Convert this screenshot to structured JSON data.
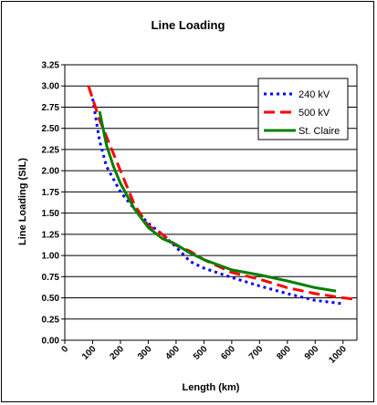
{
  "chart_data": {
    "type": "line",
    "title": "Line Loading",
    "xlabel": "Length (km)",
    "ylabel": "Line Loading (SIL)",
    "xlim": [
      0,
      1050
    ],
    "ylim": [
      0,
      3.25
    ],
    "x_ticks": [
      0,
      100,
      200,
      300,
      400,
      500,
      600,
      700,
      800,
      900,
      1000
    ],
    "x_tick_labels": [
      "0",
      "100",
      "200",
      "300",
      "400",
      "500",
      "600",
      "700",
      "800",
      "900",
      "1000"
    ],
    "y_ticks": [
      0,
      0.25,
      0.5,
      0.75,
      1.0,
      1.25,
      1.5,
      1.75,
      2.0,
      2.25,
      2.5,
      2.75,
      3.0,
      3.25
    ],
    "y_tick_labels": [
      "0.00",
      "0.25",
      "0.50",
      "0.75",
      "1.00",
      "1.25",
      "1.50",
      "1.75",
      "2.00",
      "2.25",
      "2.50",
      "2.75",
      "3.00",
      "3.25"
    ],
    "grid": true,
    "legend_position": "top-right",
    "series": [
      {
        "name": "240 kV",
        "color": "#0000ff",
        "dash": "dotted",
        "x": [
          100,
          125,
          150,
          200,
          250,
          300,
          350,
          400,
          450,
          500,
          600,
          700,
          800,
          900,
          1000
        ],
        "y": [
          2.85,
          2.35,
          2.05,
          1.75,
          1.55,
          1.38,
          1.25,
          1.1,
          0.93,
          0.85,
          0.74,
          0.64,
          0.55,
          0.47,
          0.43
        ]
      },
      {
        "name": "500 kV",
        "color": "#ff0000",
        "dash": "dashed",
        "x": [
          85,
          100,
          125,
          150,
          200,
          250,
          300,
          350,
          400,
          450,
          500,
          600,
          700,
          800,
          900,
          1000,
          1050
        ],
        "y": [
          3.0,
          2.85,
          2.6,
          2.4,
          2.0,
          1.6,
          1.35,
          1.25,
          1.12,
          1.05,
          0.95,
          0.8,
          0.72,
          0.62,
          0.55,
          0.5,
          0.48
        ]
      },
      {
        "name": "St. Claire",
        "color": "#008000",
        "dash": "solid",
        "x": [
          125,
          150,
          175,
          200,
          250,
          300,
          350,
          400,
          450,
          500,
          600,
          700,
          800,
          900,
          975
        ],
        "y": [
          2.7,
          2.3,
          2.05,
          1.85,
          1.55,
          1.33,
          1.2,
          1.13,
          1.03,
          0.95,
          0.83,
          0.77,
          0.7,
          0.62,
          0.58
        ]
      }
    ]
  }
}
